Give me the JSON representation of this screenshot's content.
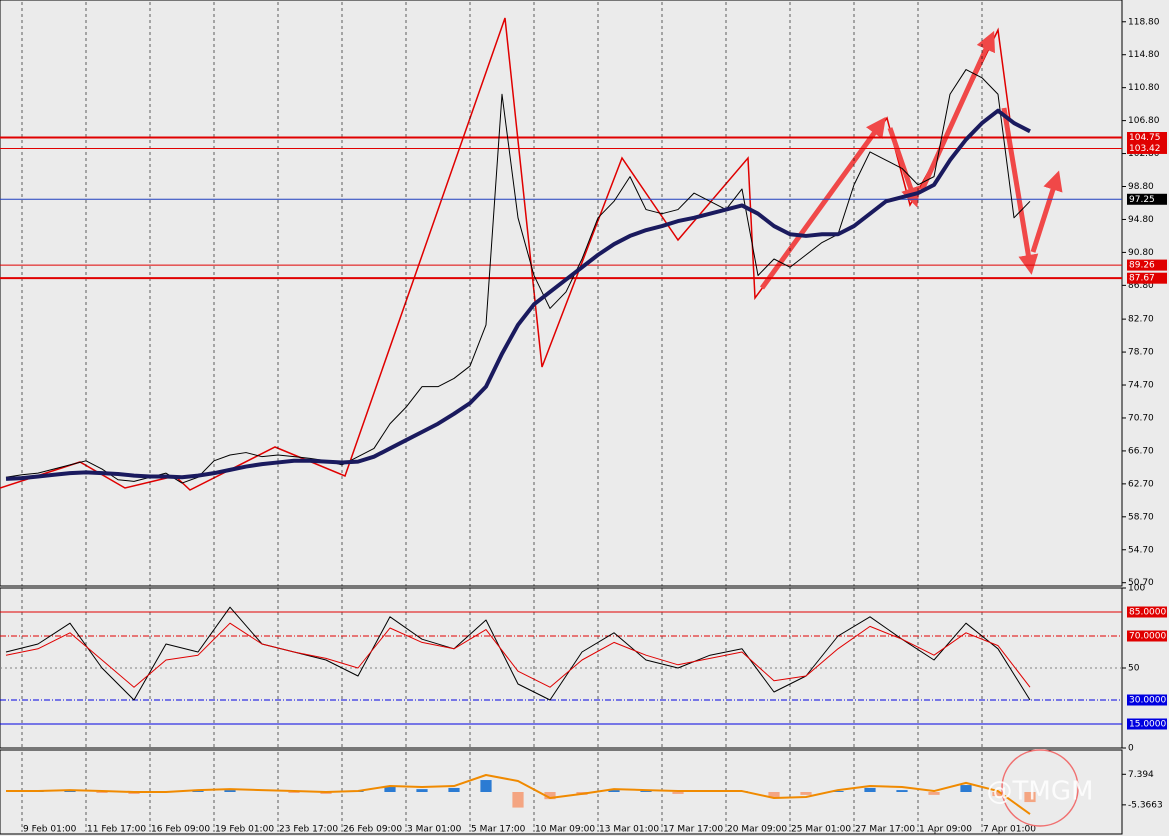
{
  "chart_data": [
    {
      "type": "line",
      "categories": [
        null,
        "9 Feb 01:00",
        null,
        null,
        null,
        "11 Feb 17:00",
        null,
        null,
        null,
        "16 Feb 09:00",
        null,
        null,
        null,
        "19 Feb 01:00",
        null,
        null,
        null,
        "23 Feb 17:00",
        null,
        null,
        null,
        "26 Feb 09:00",
        null,
        null,
        null,
        "3 Mar 01:00",
        null,
        null,
        null,
        "5 Mar 17:00",
        null,
        null,
        null,
        "10 Mar 09:00",
        null,
        null,
        null,
        "13 Mar 01:00",
        null,
        null,
        null,
        "17 Mar 17:00",
        null,
        null,
        null,
        "20 Mar 09:00",
        null,
        null,
        null,
        "25 Mar 01:00",
        null,
        null,
        null,
        "27 Mar 17:00",
        null,
        null,
        null,
        "1 Apr 09:00",
        null,
        null,
        null,
        "7 Apr 01:00",
        null,
        null,
        null
      ],
      "series": [
        {
          "color": "#000000",
          "width": 1,
          "values": [
            63.5,
            63.8,
            64.0,
            64.5,
            65.0,
            65.5,
            64.5,
            63.2,
            63.0,
            63.5,
            64.0,
            62.8,
            63.5,
            65.5,
            66.2,
            66.5,
            66.0,
            66.2,
            66.0,
            65.8,
            65.5,
            65.0,
            66.0,
            67.0,
            70.0,
            72.0,
            74.5,
            74.5,
            75.5,
            77.0,
            82.0,
            110.0,
            95.0,
            88.0,
            84.0,
            86.0,
            90.0,
            95.0,
            97.0,
            100.0,
            96.0,
            95.5,
            96.0,
            98.0,
            97.0,
            96.0,
            98.5,
            88.0,
            90.0,
            89.0,
            90.5,
            92.0,
            93.0,
            99.0,
            103.0,
            102.0,
            101.0,
            99.0,
            100.0,
            110.0,
            113.0,
            112.0,
            110.0,
            95.0,
            97.0
          ]
        },
        {
          "color": "#1a1a5e",
          "width": 4,
          "values": [
            63.3,
            63.4,
            63.6,
            63.8,
            64.0,
            64.1,
            64.0,
            63.9,
            63.7,
            63.6,
            63.6,
            63.5,
            63.7,
            64.0,
            64.4,
            64.8,
            65.1,
            65.3,
            65.5,
            65.5,
            65.4,
            65.3,
            65.4,
            66.0,
            67.0,
            68.0,
            69.0,
            70.0,
            71.2,
            72.5,
            74.5,
            78.5,
            82.0,
            84.5,
            86.0,
            87.5,
            89.0,
            90.5,
            91.8,
            92.8,
            93.5,
            94.0,
            94.6,
            95.0,
            95.5,
            96.0,
            96.5,
            95.5,
            94.0,
            93.0,
            92.8,
            93.0,
            93.0,
            94.0,
            95.5,
            97.0,
            97.5,
            98.0,
            99.0,
            102.0,
            104.5,
            106.5,
            108.0,
            106.5,
            105.5
          ]
        }
      ],
      "ylim": [
        50.3,
        121.2
      ],
      "yticks": [
        {
          "value": 118.8,
          "label": "118.80"
        },
        {
          "value": 114.8,
          "label": "114.80"
        },
        {
          "value": 110.8,
          "label": "110.80"
        },
        {
          "value": 106.8,
          "label": "106.80"
        },
        {
          "value": 102.8,
          "label": "102.80"
        },
        {
          "value": 98.8,
          "label": "98.80"
        },
        {
          "value": 94.8,
          "label": "94.80"
        },
        {
          "value": 90.8,
          "label": "90.80"
        },
        {
          "value": 86.8,
          "label": "86.80"
        },
        {
          "value": 82.7,
          "label": "82.70"
        },
        {
          "value": 78.7,
          "label": "78.70"
        },
        {
          "value": 74.7,
          "label": "74.70"
        },
        {
          "value": 70.7,
          "label": "70.70"
        },
        {
          "value": 66.7,
          "label": "66.70"
        },
        {
          "value": 62.7,
          "label": "62.70"
        },
        {
          "value": 58.7,
          "label": "58.70"
        },
        {
          "value": 54.7,
          "label": "54.70"
        },
        {
          "value": 50.7,
          "label": "50.70"
        }
      ],
      "levels": [
        {
          "value": 104.75,
          "color": "#e00000",
          "width": 2
        },
        {
          "value": 103.42,
          "color": "#e00000",
          "width": 1
        },
        {
          "value": 97.25,
          "color": "#2040c0",
          "width": 1,
          "box": "#000000"
        },
        {
          "value": 89.26,
          "color": "#e00000",
          "width": 1
        },
        {
          "value": 87.67,
          "color": "#e00000",
          "width": 2
        }
      ],
      "grid": true
    },
    {
      "type": "line",
      "series": [
        {
          "color": "#000000",
          "width": 1,
          "values": [
            60,
            65,
            78,
            50,
            30,
            65,
            60,
            88,
            65,
            60,
            55,
            45,
            82,
            68,
            62,
            80,
            40,
            30,
            60,
            72,
            55,
            50,
            58,
            62,
            35,
            45,
            70,
            82,
            68,
            55,
            78,
            62,
            30
          ]
        },
        {
          "color": "#e00000",
          "width": 1,
          "values": [
            58,
            62,
            72,
            55,
            38,
            55,
            58,
            78,
            65,
            60,
            56,
            50,
            75,
            66,
            62,
            74,
            48,
            38,
            55,
            66,
            58,
            52,
            56,
            60,
            42,
            45,
            62,
            76,
            68,
            58,
            72,
            64,
            38
          ]
        }
      ],
      "ylim": [
        0,
        100
      ],
      "yticks": [
        100,
        50,
        0
      ],
      "levels": [
        {
          "value": 85,
          "label": "85.0000",
          "color": "#e00000",
          "dash": "none"
        },
        {
          "value": 70,
          "label": "70.0000",
          "color": "#e00000",
          "dash": "6 2 1 2"
        },
        {
          "value": 50,
          "color": "#808080",
          "dash": "2 3"
        },
        {
          "value": 30,
          "label": "30.0000",
          "color": "#0000e0",
          "dash": "6 2 1 2"
        },
        {
          "value": 15,
          "label": "15.0000",
          "color": "#0000e0",
          "dash": "none"
        }
      ]
    },
    {
      "type": "combo",
      "series": [
        {
          "type": "bar",
          "color": "#2b7bd3",
          "negative_color": "#f4a582",
          "values": [
            0,
            0.4,
            0.8,
            -0.4,
            -0.8,
            0,
            0.4,
            0.8,
            0,
            -0.4,
            -0.8,
            0.4,
            2.1,
            1.2,
            1.7,
            5,
            -6.5,
            -3,
            -1.2,
            0.8,
            0.4,
            -0.8,
            0,
            0.4,
            -2.1,
            -1.2,
            0.4,
            1.7,
            0.8,
            -1.2,
            2.9,
            -1.7,
            -4.2
          ]
        },
        {
          "type": "line",
          "color": "#f08a00",
          "width": 2,
          "values": [
            0.4,
            0.4,
            0.8,
            0.4,
            0,
            0,
            0.8,
            1.2,
            0.8,
            0.4,
            0,
            0.4,
            2.5,
            2.1,
            2.5,
            7.1,
            4.6,
            -2.5,
            -0.8,
            1.2,
            0.8,
            0.4,
            0.4,
            0.4,
            -2.5,
            -2.1,
            0.8,
            2.5,
            2.1,
            0.4,
            3.8,
            0.4,
            -9.2
          ]
        }
      ],
      "ylim": [
        -16.7,
        16.7
      ],
      "yticks": [
        7.394,
        -5.3663
      ]
    }
  ],
  "watermark": "@TMGM"
}
